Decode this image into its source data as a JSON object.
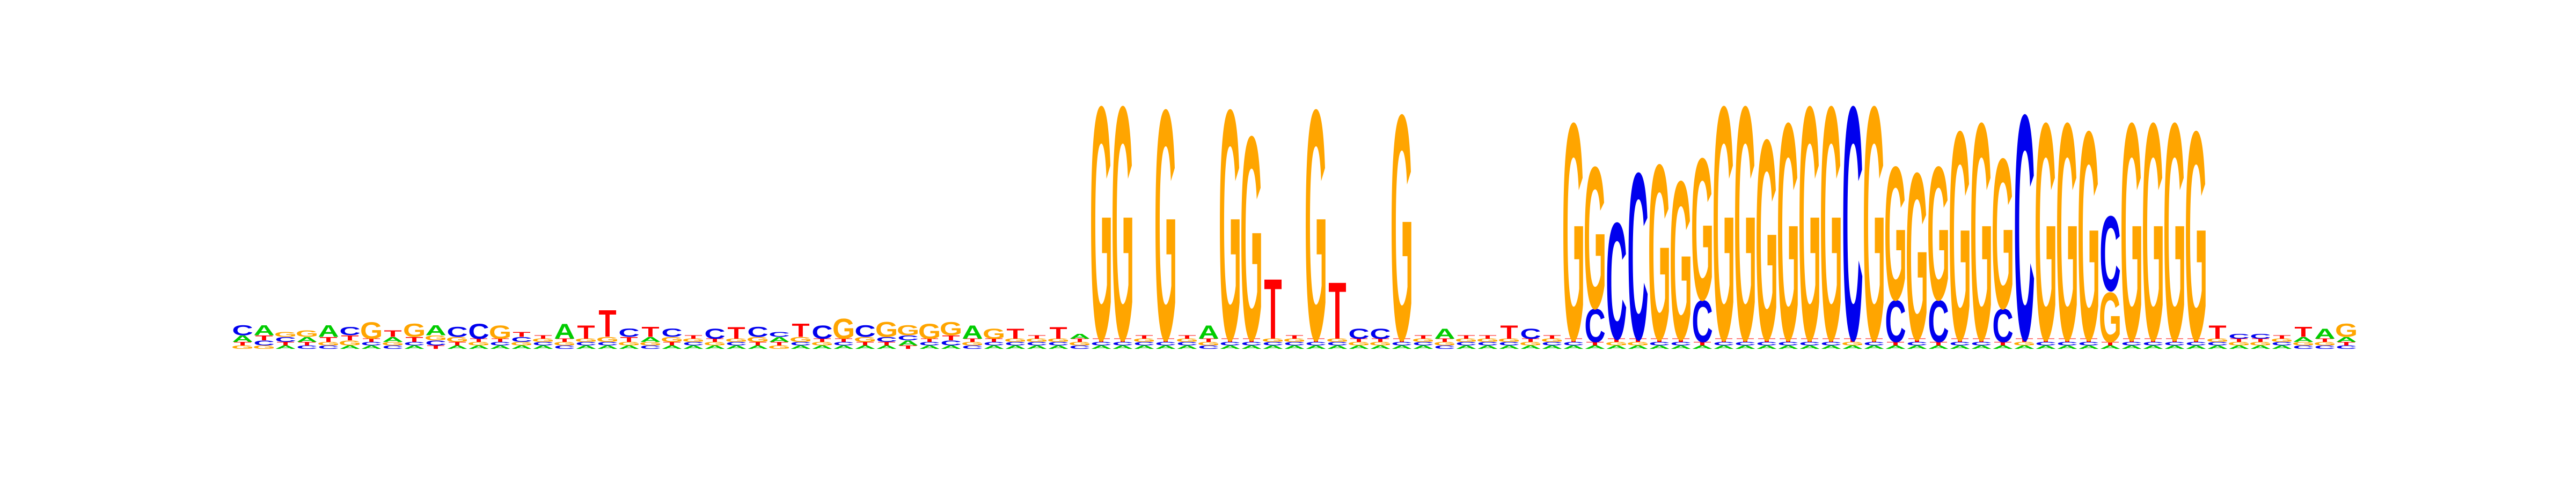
{
  "colors": {
    "A": "#00cc00",
    "C": "#0000ee",
    "G": "#ffa500",
    "T": "#ff0000",
    "background": "#ffffff"
  },
  "chart_data": {
    "type": "sequence-logo",
    "alphabet": [
      "A",
      "C",
      "G",
      "T"
    ],
    "ylim": [
      0,
      2
    ],
    "positions": [
      {
        "A": 0.04,
        "C": 0.06,
        "G": 0.02,
        "T": 0.02
      },
      {
        "A": 0.06,
        "C": 0.03,
        "G": 0.02,
        "T": 0.03
      },
      {
        "A": 0.02,
        "C": 0.03,
        "G": 0.03,
        "T": 0.02
      },
      {
        "A": 0.03,
        "C": 0.02,
        "G": 0.04,
        "T": 0.02
      },
      {
        "A": 0.07,
        "C": 0.02,
        "G": 0.02,
        "T": 0.03
      },
      {
        "A": 0.02,
        "C": 0.05,
        "G": 0.03,
        "T": 0.03
      },
      {
        "A": 0.02,
        "C": 0.02,
        "G": 0.1,
        "T": 0.02
      },
      {
        "A": 0.03,
        "C": 0.02,
        "G": 0.02,
        "T": 0.04
      },
      {
        "A": 0.02,
        "C": 0.02,
        "G": 0.08,
        "T": 0.03
      },
      {
        "A": 0.06,
        "C": 0.03,
        "G": 0.03,
        "T": 0.02
      },
      {
        "A": 0.02,
        "C": 0.06,
        "G": 0.03,
        "T": 0.02
      },
      {
        "A": 0.02,
        "C": 0.09,
        "G": 0.02,
        "T": 0.02
      },
      {
        "A": 0.02,
        "C": 0.02,
        "G": 0.08,
        "T": 0.02
      },
      {
        "A": 0.02,
        "C": 0.03,
        "G": 0.02,
        "T": 0.03
      },
      {
        "A": 0.02,
        "C": 0.02,
        "G": 0.02,
        "T": 0.02
      },
      {
        "A": 0.09,
        "C": 0.02,
        "G": 0.02,
        "T": 0.02
      },
      {
        "A": 0.02,
        "C": 0.02,
        "G": 0.02,
        "T": 0.08
      },
      {
        "A": 0.02,
        "C": 0.02,
        "G": 0.03,
        "T": 0.16
      },
      {
        "A": 0.02,
        "C": 0.05,
        "G": 0.02,
        "T": 0.03
      },
      {
        "A": 0.03,
        "C": 0.02,
        "G": 0.02,
        "T": 0.06
      },
      {
        "A": 0.02,
        "C": 0.05,
        "G": 0.03,
        "T": 0.02
      },
      {
        "A": 0.02,
        "C": 0.02,
        "G": 0.02,
        "T": 0.02
      },
      {
        "A": 0.02,
        "C": 0.06,
        "G": 0.02,
        "T": 0.02
      },
      {
        "A": 0.02,
        "C": 0.02,
        "G": 0.02,
        "T": 0.07
      },
      {
        "A": 0.02,
        "C": 0.06,
        "G": 0.03,
        "T": 0.02
      },
      {
        "A": 0.03,
        "C": 0.03,
        "G": 0.02,
        "T": 0.02
      },
      {
        "A": 0.02,
        "C": 0.02,
        "G": 0.03,
        "T": 0.08
      },
      {
        "A": 0.02,
        "C": 0.08,
        "G": 0.02,
        "T": 0.02
      },
      {
        "A": 0.02,
        "C": 0.02,
        "G": 0.12,
        "T": 0.02
      },
      {
        "A": 0.02,
        "C": 0.07,
        "G": 0.03,
        "T": 0.02
      },
      {
        "A": 0.02,
        "C": 0.03,
        "G": 0.09,
        "T": 0.02
      },
      {
        "A": 0.03,
        "C": 0.03,
        "G": 0.06,
        "T": 0.02
      },
      {
        "A": 0.02,
        "C": 0.02,
        "G": 0.09,
        "T": 0.02
      },
      {
        "A": 0.02,
        "C": 0.03,
        "G": 0.08,
        "T": 0.03
      },
      {
        "A": 0.08,
        "C": 0.02,
        "G": 0.02,
        "T": 0.02
      },
      {
        "A": 0.02,
        "C": 0.02,
        "G": 0.06,
        "T": 0.02
      },
      {
        "A": 0.02,
        "C": 0.02,
        "G": 0.02,
        "T": 0.06
      },
      {
        "A": 0.02,
        "C": 0.02,
        "G": 0.02,
        "T": 0.02
      },
      {
        "A": 0.02,
        "C": 0.02,
        "G": 0.02,
        "T": 0.07
      },
      {
        "A": 0.03,
        "C": 0.02,
        "G": 0.02,
        "T": 0.02
      },
      {
        "A": 0.02,
        "C": 0.02,
        "G": 1.4,
        "T": 0.02
      },
      {
        "A": 0.02,
        "C": 0.02,
        "G": 1.4,
        "T": 0.02
      },
      {
        "A": 0.02,
        "C": 0.02,
        "G": 0.02,
        "T": 0.02
      },
      {
        "A": 0.02,
        "C": 0.02,
        "G": 1.38,
        "T": 0.02
      },
      {
        "A": 0.02,
        "C": 0.02,
        "G": 0.02,
        "T": 0.02
      },
      {
        "A": 0.08,
        "C": 0.02,
        "G": 0.02,
        "T": 0.02
      },
      {
        "A": 0.02,
        "C": 0.02,
        "G": 1.38,
        "T": 0.02
      },
      {
        "A": 0.02,
        "C": 0.02,
        "G": 1.22,
        "T": 0.02
      },
      {
        "A": 0.02,
        "C": 0.02,
        "G": 0.02,
        "T": 0.36
      },
      {
        "A": 0.02,
        "C": 0.02,
        "G": 0.02,
        "T": 0.02
      },
      {
        "A": 0.02,
        "C": 0.02,
        "G": 1.38,
        "T": 0.02
      },
      {
        "A": 0.02,
        "C": 0.02,
        "G": 0.02,
        "T": 0.34
      },
      {
        "A": 0.02,
        "C": 0.06,
        "G": 0.02,
        "T": 0.02
      },
      {
        "A": 0.02,
        "C": 0.06,
        "G": 0.02,
        "T": 0.02
      },
      {
        "A": 0.02,
        "C": 0.02,
        "G": 1.35,
        "T": 0.02
      },
      {
        "A": 0.02,
        "C": 0.02,
        "G": 0.02,
        "T": 0.02
      },
      {
        "A": 0.06,
        "C": 0.02,
        "G": 0.02,
        "T": 0.02
      },
      {
        "A": 0.02,
        "C": 0.02,
        "G": 0.02,
        "T": 0.02
      },
      {
        "A": 0.02,
        "C": 0.02,
        "G": 0.02,
        "T": 0.02
      },
      {
        "A": 0.02,
        "C": 0.02,
        "G": 0.02,
        "T": 0.08
      },
      {
        "A": 0.02,
        "C": 0.06,
        "G": 0.02,
        "T": 0.02
      },
      {
        "A": 0.02,
        "C": 0.02,
        "G": 0.02,
        "T": 0.02
      },
      {
        "A": 0.02,
        "C": 0.02,
        "G": 1.3,
        "T": 0.02
      },
      {
        "A": 0.02,
        "C": 0.2,
        "G": 0.85,
        "T": 0.02
      },
      {
        "A": 0.02,
        "C": 0.7,
        "G": 0.02,
        "T": 0.02
      },
      {
        "A": 0.02,
        "C": 1.0,
        "G": 0.02,
        "T": 0.02
      },
      {
        "A": 0.02,
        "C": 0.02,
        "G": 1.05,
        "T": 0.02
      },
      {
        "A": 0.02,
        "C": 0.02,
        "G": 0.95,
        "T": 0.02
      },
      {
        "A": 0.02,
        "C": 0.25,
        "G": 0.85,
        "T": 0.02
      },
      {
        "A": 0.02,
        "C": 0.02,
        "G": 1.4,
        "T": 0.02
      },
      {
        "A": 0.02,
        "C": 0.02,
        "G": 1.4,
        "T": 0.02
      },
      {
        "A": 0.02,
        "C": 0.02,
        "G": 1.2,
        "T": 0.02
      },
      {
        "A": 0.02,
        "C": 0.02,
        "G": 1.3,
        "T": 0.02
      },
      {
        "A": 0.02,
        "C": 0.02,
        "G": 1.4,
        "T": 0.02
      },
      {
        "A": 0.02,
        "C": 0.02,
        "G": 1.4,
        "T": 0.02
      },
      {
        "A": 0.02,
        "C": 1.4,
        "G": 0.02,
        "T": 0.02
      },
      {
        "A": 0.02,
        "C": 0.02,
        "G": 1.4,
        "T": 0.02
      },
      {
        "A": 0.02,
        "C": 0.25,
        "G": 0.8,
        "T": 0.02
      },
      {
        "A": 0.02,
        "C": 0.02,
        "G": 1.0,
        "T": 0.02
      },
      {
        "A": 0.02,
        "C": 0.25,
        "G": 0.8,
        "T": 0.02
      },
      {
        "A": 0.02,
        "C": 0.02,
        "G": 1.25,
        "T": 0.02
      },
      {
        "A": 0.02,
        "C": 0.02,
        "G": 1.3,
        "T": 0.02
      },
      {
        "A": 0.02,
        "C": 0.2,
        "G": 0.9,
        "T": 0.02
      },
      {
        "A": 0.02,
        "C": 1.35,
        "G": 0.02,
        "T": 0.02
      },
      {
        "A": 0.02,
        "C": 0.02,
        "G": 1.3,
        "T": 0.02
      },
      {
        "A": 0.02,
        "C": 0.02,
        "G": 1.3,
        "T": 0.02
      },
      {
        "A": 0.02,
        "C": 0.02,
        "G": 1.25,
        "T": 0.02
      },
      {
        "A": 0.02,
        "C": 0.45,
        "G": 0.3,
        "T": 0.02
      },
      {
        "A": 0.02,
        "C": 0.02,
        "G": 1.3,
        "T": 0.02
      },
      {
        "A": 0.02,
        "C": 0.02,
        "G": 1.3,
        "T": 0.02
      },
      {
        "A": 0.02,
        "C": 0.02,
        "G": 1.3,
        "T": 0.02
      },
      {
        "A": 0.02,
        "C": 0.02,
        "G": 1.25,
        "T": 0.02
      },
      {
        "A": 0.02,
        "C": 0.02,
        "G": 0.02,
        "T": 0.08
      },
      {
        "A": 0.02,
        "C": 0.03,
        "G": 0.02,
        "T": 0.02
      },
      {
        "A": 0.02,
        "C": 0.03,
        "G": 0.02,
        "T": 0.02
      },
      {
        "A": 0.02,
        "C": 0.02,
        "G": 0.02,
        "T": 0.02
      },
      {
        "A": 0.03,
        "C": 0.02,
        "G": 0.02,
        "T": 0.06
      },
      {
        "A": 0.06,
        "C": 0.02,
        "G": 0.02,
        "T": 0.02
      },
      {
        "A": 0.03,
        "C": 0.02,
        "G": 0.08,
        "T": 0.02
      }
    ]
  }
}
